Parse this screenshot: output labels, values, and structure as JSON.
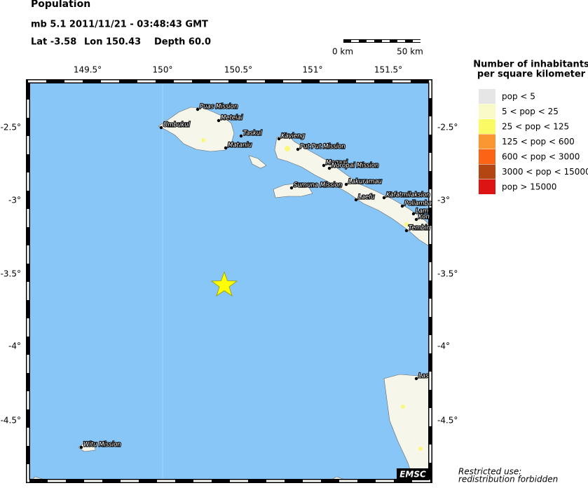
{
  "header": {
    "title": "Population",
    "event": "mb 5.1  2011/11/21 - 03:48:43 GMT",
    "lat": "Lat -3.58",
    "lon": "Lon 150.43",
    "depth": "Depth  60.0"
  },
  "scale_bar": {
    "start": "0 km",
    "end": "50 km"
  },
  "map": {
    "lon_ticks": [
      "149.5°",
      "150°",
      "150.5°",
      "151°",
      "151.5°"
    ],
    "lat_ticks": [
      "-2.5°",
      "-3°",
      "-3.5°",
      "-4°",
      "-4.5°"
    ],
    "towns": [
      "Puas Mission",
      "Meteiai",
      "Umbukul",
      "Taskul",
      "Kavieng",
      "Mataniu",
      "Put Put Mission",
      "Mogaai",
      "Noropai Mission",
      "Sumuna Mission",
      "Lakuramau",
      "Laefu",
      "Kafatmilaksion",
      "Poliamba",
      "Lam",
      "Kon",
      "Tembin",
      "Las",
      "Witu Mission"
    ],
    "credit": "EMSC"
  },
  "legend": {
    "title": [
      "Number of inhabitants",
      "per square kilometer"
    ],
    "entries": [
      {
        "label": "pop < 5",
        "color": "#e6e6e6"
      },
      {
        "label": "5 < pop < 25",
        "color": "#fafac8"
      },
      {
        "label": "25 < pop < 125",
        "color": "#fafa64"
      },
      {
        "label": "125 < pop < 600",
        "color": "#fa9632"
      },
      {
        "label": "600 < pop < 3000",
        "color": "#fa6414"
      },
      {
        "label": "3000 < pop < 15000",
        "color": "#b44614"
      },
      {
        "label": "pop > 15000",
        "color": "#dc1414"
      }
    ]
  },
  "notice": [
    "Restricted use:",
    "redistribution forbidden"
  ]
}
